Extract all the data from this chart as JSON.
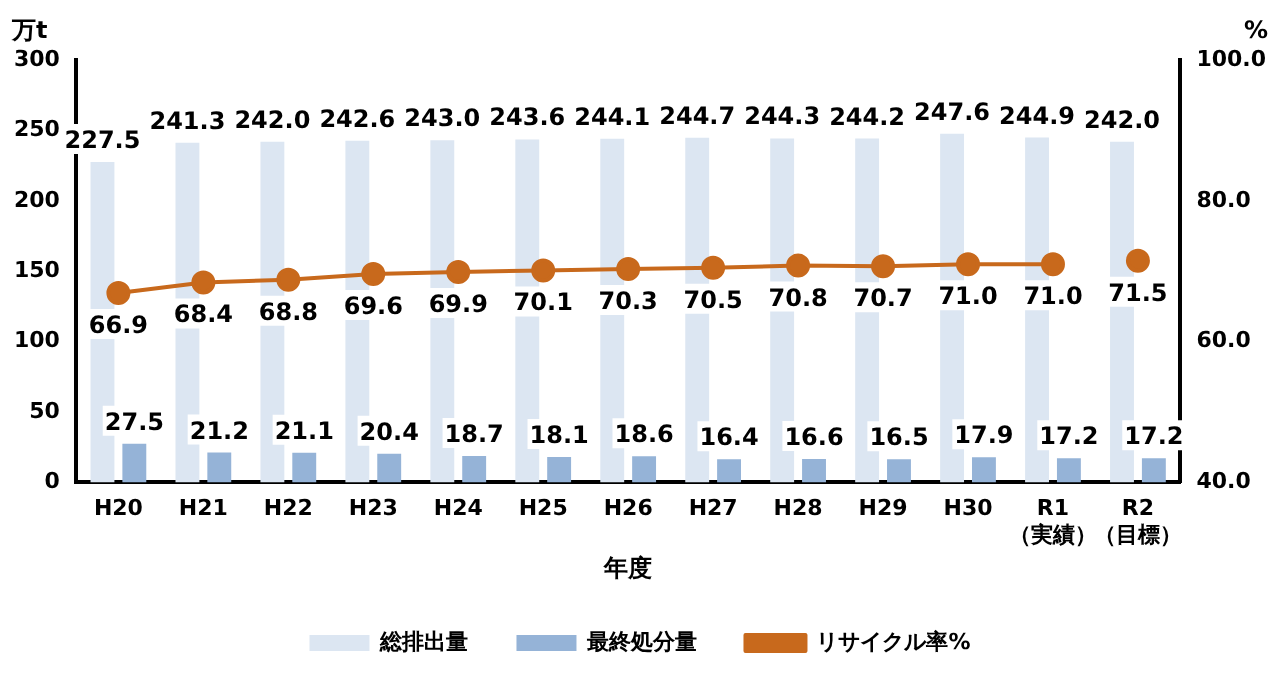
{
  "chart_data": {
    "type": "bar",
    "xlabel": "年度",
    "ylabel": "万t",
    "y2label": "%",
    "categories": [
      "H20",
      "H21",
      "H22",
      "H23",
      "H24",
      "H25",
      "H26",
      "H27",
      "H28",
      "H29",
      "H30",
      "R1\n（実績）",
      "R2\n（目標）"
    ],
    "series": [
      {
        "name": "総排出量",
        "color": "#dce6f2",
        "values": [
          227.5,
          241.3,
          242.0,
          242.6,
          243.0,
          243.6,
          244.1,
          244.7,
          244.3,
          244.2,
          247.6,
          244.9,
          242.0
        ],
        "value_labels": [
          "227.5",
          "241.3",
          "242.0",
          "242.6",
          "243.0",
          "243.6",
          "244.1",
          "244.7",
          "244.3",
          "244.2",
          "247.6",
          "244.9",
          "242.0"
        ]
      },
      {
        "name": "最終処分量",
        "color": "#95b3d7",
        "values": [
          27.5,
          21.2,
          21.1,
          20.4,
          18.7,
          18.1,
          18.6,
          16.4,
          16.6,
          16.5,
          17.9,
          17.2,
          17.2
        ],
        "value_labels": [
          "27.5",
          "21.2",
          "21.1",
          "20.4",
          "18.7",
          "18.1",
          "18.6",
          "16.4",
          "16.6",
          "16.5",
          "17.9",
          "17.2",
          "17.2"
        ]
      },
      {
        "name": "リサイクル率%",
        "type": "line",
        "axis": "y2",
        "color": "#c8691c",
        "values": [
          66.9,
          68.4,
          68.8,
          69.6,
          69.9,
          70.1,
          70.3,
          70.5,
          70.8,
          70.7,
          71.0,
          71.0,
          null
        ],
        "value_labels": [
          "66.9",
          "68.4",
          "68.8",
          "69.6",
          "69.9",
          "70.1",
          "70.3",
          "70.5",
          "70.8",
          "70.7",
          "71.0",
          "71.0",
          null
        ]
      },
      {
        "type": "line",
        "axis": "y2",
        "color": "#c8691c",
        "values": [
          null,
          null,
          null,
          null,
          null,
          null,
          null,
          null,
          null,
          null,
          null,
          null,
          71.5
        ],
        "value_labels": [
          null,
          null,
          null,
          null,
          null,
          null,
          null,
          null,
          null,
          null,
          null,
          null,
          "71.5"
        ]
      }
    ],
    "ylim": [
      0,
      300
    ],
    "yticks": [
      0,
      50,
      100,
      150,
      200,
      250,
      300
    ],
    "y2lim": [
      40,
      100
    ],
    "y2ticks": [
      {
        "value": 40,
        "label": "40.0"
      },
      {
        "value": 60,
        "label": "60.0"
      },
      {
        "value": 80,
        "label": "80.0"
      },
      {
        "value": 100,
        "label": "100.0"
      }
    ],
    "grid": false,
    "legend": "bottom",
    "marker": "circle",
    "line_style": "solid",
    "data_labels": true
  }
}
